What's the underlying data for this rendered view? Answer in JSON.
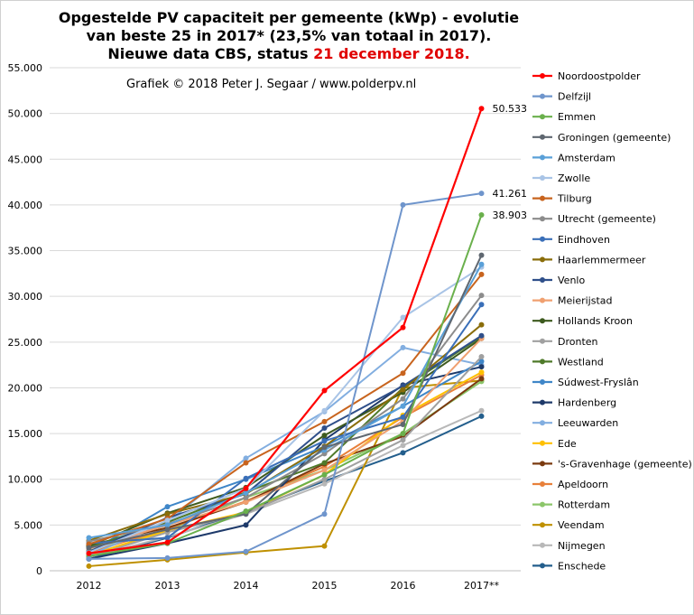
{
  "chart_data": {
    "type": "line",
    "title_line1": "Opgestelde PV capaciteit per gemeente (kWp) - evolutie",
    "title_line2": "van beste 25 in 2017* (23,5% van totaal in 2017).",
    "title_line3_prefix": "Nieuwe data CBS, status ",
    "title_line3_highlight": "21 december 2018.",
    "credit": "Grafiek  © 2018  Peter J. Segaar / www.polderpv.nl",
    "categories": [
      "2012",
      "2013",
      "2014",
      "2015",
      "2016",
      "2017**"
    ],
    "y_ticks": [
      "0",
      "5.000",
      "10.000",
      "15.000",
      "20.000",
      "25.000",
      "30.000",
      "35.000",
      "40.000",
      "45.000",
      "50.000",
      "55.000"
    ],
    "ylim": [
      0,
      55000
    ],
    "grid": true,
    "legend_position": "right",
    "colors": {
      "highlight": "#e00000",
      "grid": "#d9d9d9"
    },
    "series": [
      {
        "name": "Noordoostpolder",
        "color": "#ff0000",
        "width": 2.2,
        "values": [
          1900,
          3100,
          9000,
          19700,
          26600,
          50533
        ],
        "last_label": "50.533"
      },
      {
        "name": "Delfzijl",
        "color": "#6f95cc",
        "width": 2,
        "values": [
          1300,
          1400,
          2100,
          6200,
          40000,
          41261
        ],
        "last_label": "41.261"
      },
      {
        "name": "Emmen",
        "color": "#6ab04c",
        "width": 2,
        "values": [
          1600,
          3000,
          6500,
          10500,
          15000,
          38903
        ],
        "last_label": "38.903"
      },
      {
        "name": "Groningen (gemeente)",
        "color": "#5f6770",
        "width": 2,
        "values": [
          2500,
          4500,
          6200,
          13500,
          16000,
          34500
        ]
      },
      {
        "name": "Amsterdam",
        "color": "#5aa0d8",
        "width": 2,
        "values": [
          3600,
          5000,
          8500,
          13200,
          18000,
          33500
        ]
      },
      {
        "name": "Zwolle",
        "color": "#a9c4e6",
        "width": 2,
        "values": [
          2000,
          5500,
          9000,
          17500,
          27700,
          33200
        ]
      },
      {
        "name": "Tilburg",
        "color": "#c8641e",
        "width": 2,
        "values": [
          2900,
          5700,
          11800,
          16300,
          21600,
          32400
        ]
      },
      {
        "name": "Utrecht (gemeente)",
        "color": "#8c8c8c",
        "width": 2,
        "values": [
          3200,
          5100,
          8000,
          12800,
          18800,
          30100
        ]
      },
      {
        "name": "Eindhoven",
        "color": "#3a6fb8",
        "width": 2,
        "values": [
          3000,
          3600,
          10100,
          14200,
          16800,
          29100
        ]
      },
      {
        "name": "Haarlemmermeer",
        "color": "#8a6d0a",
        "width": 2,
        "values": [
          3300,
          6200,
          8400,
          13600,
          19800,
          26900
        ]
      },
      {
        "name": "Venlo",
        "color": "#2f4f8a",
        "width": 2,
        "values": [
          2100,
          5800,
          8400,
          15600,
          20200,
          25700
        ]
      },
      {
        "name": "Meierijstad",
        "color": "#f0a070",
        "width": 2,
        "values": [
          2400,
          5000,
          7500,
          11000,
          16400,
          25400
        ]
      },
      {
        "name": "Hollands Kroon",
        "color": "#3d5a1e",
        "width": 2,
        "values": [
          2700,
          6300,
          9100,
          14800,
          19500,
          25400
        ]
      },
      {
        "name": "Dronten",
        "color": "#a0a0a0",
        "width": 2,
        "values": [
          1500,
          4200,
          6300,
          10000,
          14300,
          23400
        ]
      },
      {
        "name": "Westland",
        "color": "#4f7a2a",
        "width": 2,
        "values": [
          2600,
          5300,
          8600,
          11800,
          20000,
          25600
        ]
      },
      {
        "name": "Súdwest-Fryslân",
        "color": "#3f86c8",
        "width": 2,
        "values": [
          2000,
          7000,
          10000,
          13600,
          18000,
          22900
        ]
      },
      {
        "name": "Hardenberg",
        "color": "#1e3a6a",
        "width": 2,
        "values": [
          1300,
          3000,
          5000,
          14300,
          20300,
          22300
        ]
      },
      {
        "name": "Leeuwarden",
        "color": "#82aee0",
        "width": 2,
        "values": [
          1700,
          5300,
          12300,
          17400,
          24400,
          22500
        ]
      },
      {
        "name": "Ede",
        "color": "#ffc000",
        "width": 2,
        "values": [
          1700,
          4400,
          6400,
          10500,
          17000,
          21700
        ]
      },
      {
        "name": "'s-Gravenhage (gemeente)",
        "color": "#7a3a10",
        "width": 2,
        "values": [
          2800,
          4700,
          7500,
          11700,
          14700,
          21000
        ]
      },
      {
        "name": "Apeldoorn",
        "color": "#e8803a",
        "width": 2,
        "values": [
          2000,
          4600,
          7600,
          11400,
          16800,
          21400
        ]
      },
      {
        "name": "Rotterdam",
        "color": "#8cc66a",
        "width": 2,
        "values": [
          2200,
          4400,
          8000,
          11000,
          15000,
          20700
        ]
      },
      {
        "name": "Veendam",
        "color": "#bf9000",
        "width": 2,
        "values": [
          500,
          1200,
          2000,
          2700,
          20000,
          20800
        ]
      },
      {
        "name": "Nijmegen",
        "color": "#b8b8b8",
        "width": 2,
        "values": [
          1500,
          3700,
          6200,
          9500,
          13700,
          17500
        ]
      },
      {
        "name": "Enschede",
        "color": "#235e8c",
        "width": 2,
        "values": [
          1300,
          3600,
          6500,
          9800,
          12900,
          16900
        ]
      }
    ]
  }
}
